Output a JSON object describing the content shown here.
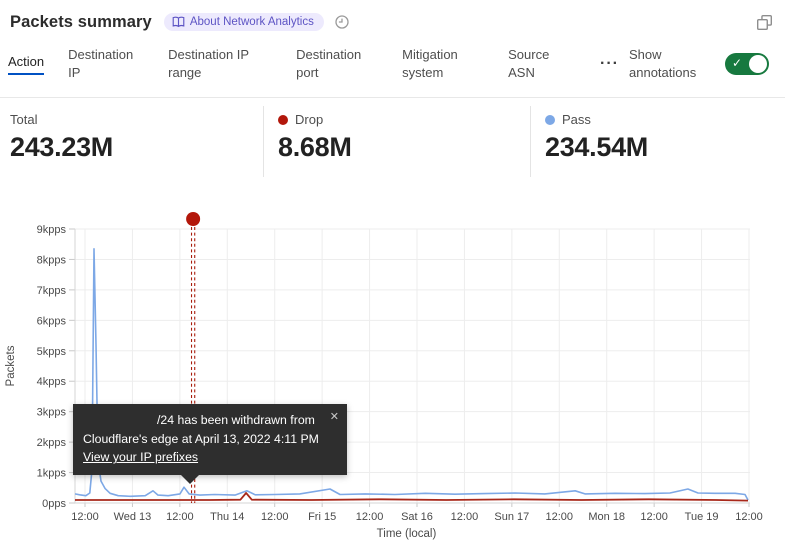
{
  "header": {
    "title": "Packets summary",
    "about_badge": "About Network Analytics"
  },
  "tabs": [
    {
      "label": "Action",
      "selected": true
    },
    {
      "label": "Destination IP"
    },
    {
      "label": "Destination IP range"
    },
    {
      "label": "Destination port"
    },
    {
      "label": "Mitigation system"
    },
    {
      "label": "Source ASN"
    }
  ],
  "tabs_more_icon": "···",
  "annotations_toggle": {
    "label": "Show annotations",
    "state": "on",
    "check_glyph": "✓"
  },
  "stats": [
    {
      "label": "Total",
      "value": "243.23M",
      "dot_color": ""
    },
    {
      "label": "Drop",
      "value": "8.68M",
      "dot_color": "#b2170b"
    },
    {
      "label": "Pass",
      "value": "234.54M",
      "dot_color": "#7da8e6"
    }
  ],
  "tooltip": {
    "line1": "/24 has been withdrawn from",
    "line2": "Cloudflare's edge at April 13, 2022 4:11 PM",
    "link_label": "View your IP prefixes",
    "close_icon": "✕"
  },
  "chart_data": {
    "type": "line",
    "title": "Packets summary",
    "xlabel": "Time (local)",
    "ylabel": "Packets",
    "ylim": [
      0,
      9
    ],
    "y_unit": "kpps",
    "grid": true,
    "y_ticks": [
      "0pps",
      "1kpps",
      "2kpps",
      "3kpps",
      "4kpps",
      "5kpps",
      "6kpps",
      "7kpps",
      "8kpps",
      "9kpps"
    ],
    "x_ticks": [
      "12:00",
      "Wed 13",
      "12:00",
      "Thu 14",
      "12:00",
      "Fri 15",
      "12:00",
      "Sat 16",
      "12:00",
      "Sun 17",
      "12:00",
      "Mon 18",
      "12:00",
      "Tue 19",
      "12:00"
    ],
    "series": [
      {
        "name": "Pass",
        "color": "#7da8e6",
        "width": 1.6,
        "points": [
          [
            0,
            0.3
          ],
          [
            0.007,
            0.27
          ],
          [
            0.016,
            0.24
          ],
          [
            0.022,
            0.33
          ],
          [
            0.0252,
            1.1
          ],
          [
            0.0281,
            8.35
          ],
          [
            0.0311,
            5.2
          ],
          [
            0.034,
            1.4
          ],
          [
            0.0385,
            0.72
          ],
          [
            0.0444,
            0.48
          ],
          [
            0.052,
            0.32
          ],
          [
            0.064,
            0.24
          ],
          [
            0.082,
            0.22
          ],
          [
            0.104,
            0.24
          ],
          [
            0.1156,
            0.4
          ],
          [
            0.123,
            0.26
          ],
          [
            0.138,
            0.24
          ],
          [
            0.1556,
            0.3
          ],
          [
            0.1615,
            0.52
          ],
          [
            0.169,
            0.3
          ],
          [
            0.185,
            0.26
          ],
          [
            0.207,
            0.28
          ],
          [
            0.237,
            0.26
          ],
          [
            0.2548,
            0.4
          ],
          [
            0.267,
            0.27
          ],
          [
            0.296,
            0.28
          ],
          [
            0.333,
            0.3
          ],
          [
            0.3778,
            0.46
          ],
          [
            0.3926,
            0.28
          ],
          [
            0.43,
            0.3
          ],
          [
            0.474,
            0.28
          ],
          [
            0.519,
            0.32
          ],
          [
            0.563,
            0.29
          ],
          [
            0.607,
            0.31
          ],
          [
            0.652,
            0.33
          ],
          [
            0.696,
            0.3
          ],
          [
            0.741,
            0.4
          ],
          [
            0.7556,
            0.3
          ],
          [
            0.8,
            0.32
          ],
          [
            0.844,
            0.31
          ],
          [
            0.8815,
            0.33
          ],
          [
            0.908,
            0.46
          ],
          [
            0.923,
            0.33
          ],
          [
            0.948,
            0.32
          ],
          [
            0.978,
            0.32
          ],
          [
            0.9926,
            0.28
          ],
          [
            0.997,
            0.1
          ]
        ]
      },
      {
        "name": "Drop",
        "color": "#a8281a",
        "width": 1.8,
        "points": [
          [
            0,
            0.1
          ],
          [
            0.1,
            0.1
          ],
          [
            0.2,
            0.1
          ],
          [
            0.245,
            0.11
          ],
          [
            0.2535,
            0.33
          ],
          [
            0.262,
            0.11
          ],
          [
            0.35,
            0.1
          ],
          [
            0.45,
            0.12
          ],
          [
            0.55,
            0.1
          ],
          [
            0.65,
            0.12
          ],
          [
            0.75,
            0.1
          ],
          [
            0.85,
            0.12
          ],
          [
            0.95,
            0.1
          ],
          [
            0.997,
            0.08
          ]
        ]
      }
    ],
    "annotation": {
      "x": 0.175,
      "color": "#b3170a",
      "label": "/24 has been withdrawn from Cloudflare's edge at April 13, 2022 4:11 PM"
    }
  }
}
